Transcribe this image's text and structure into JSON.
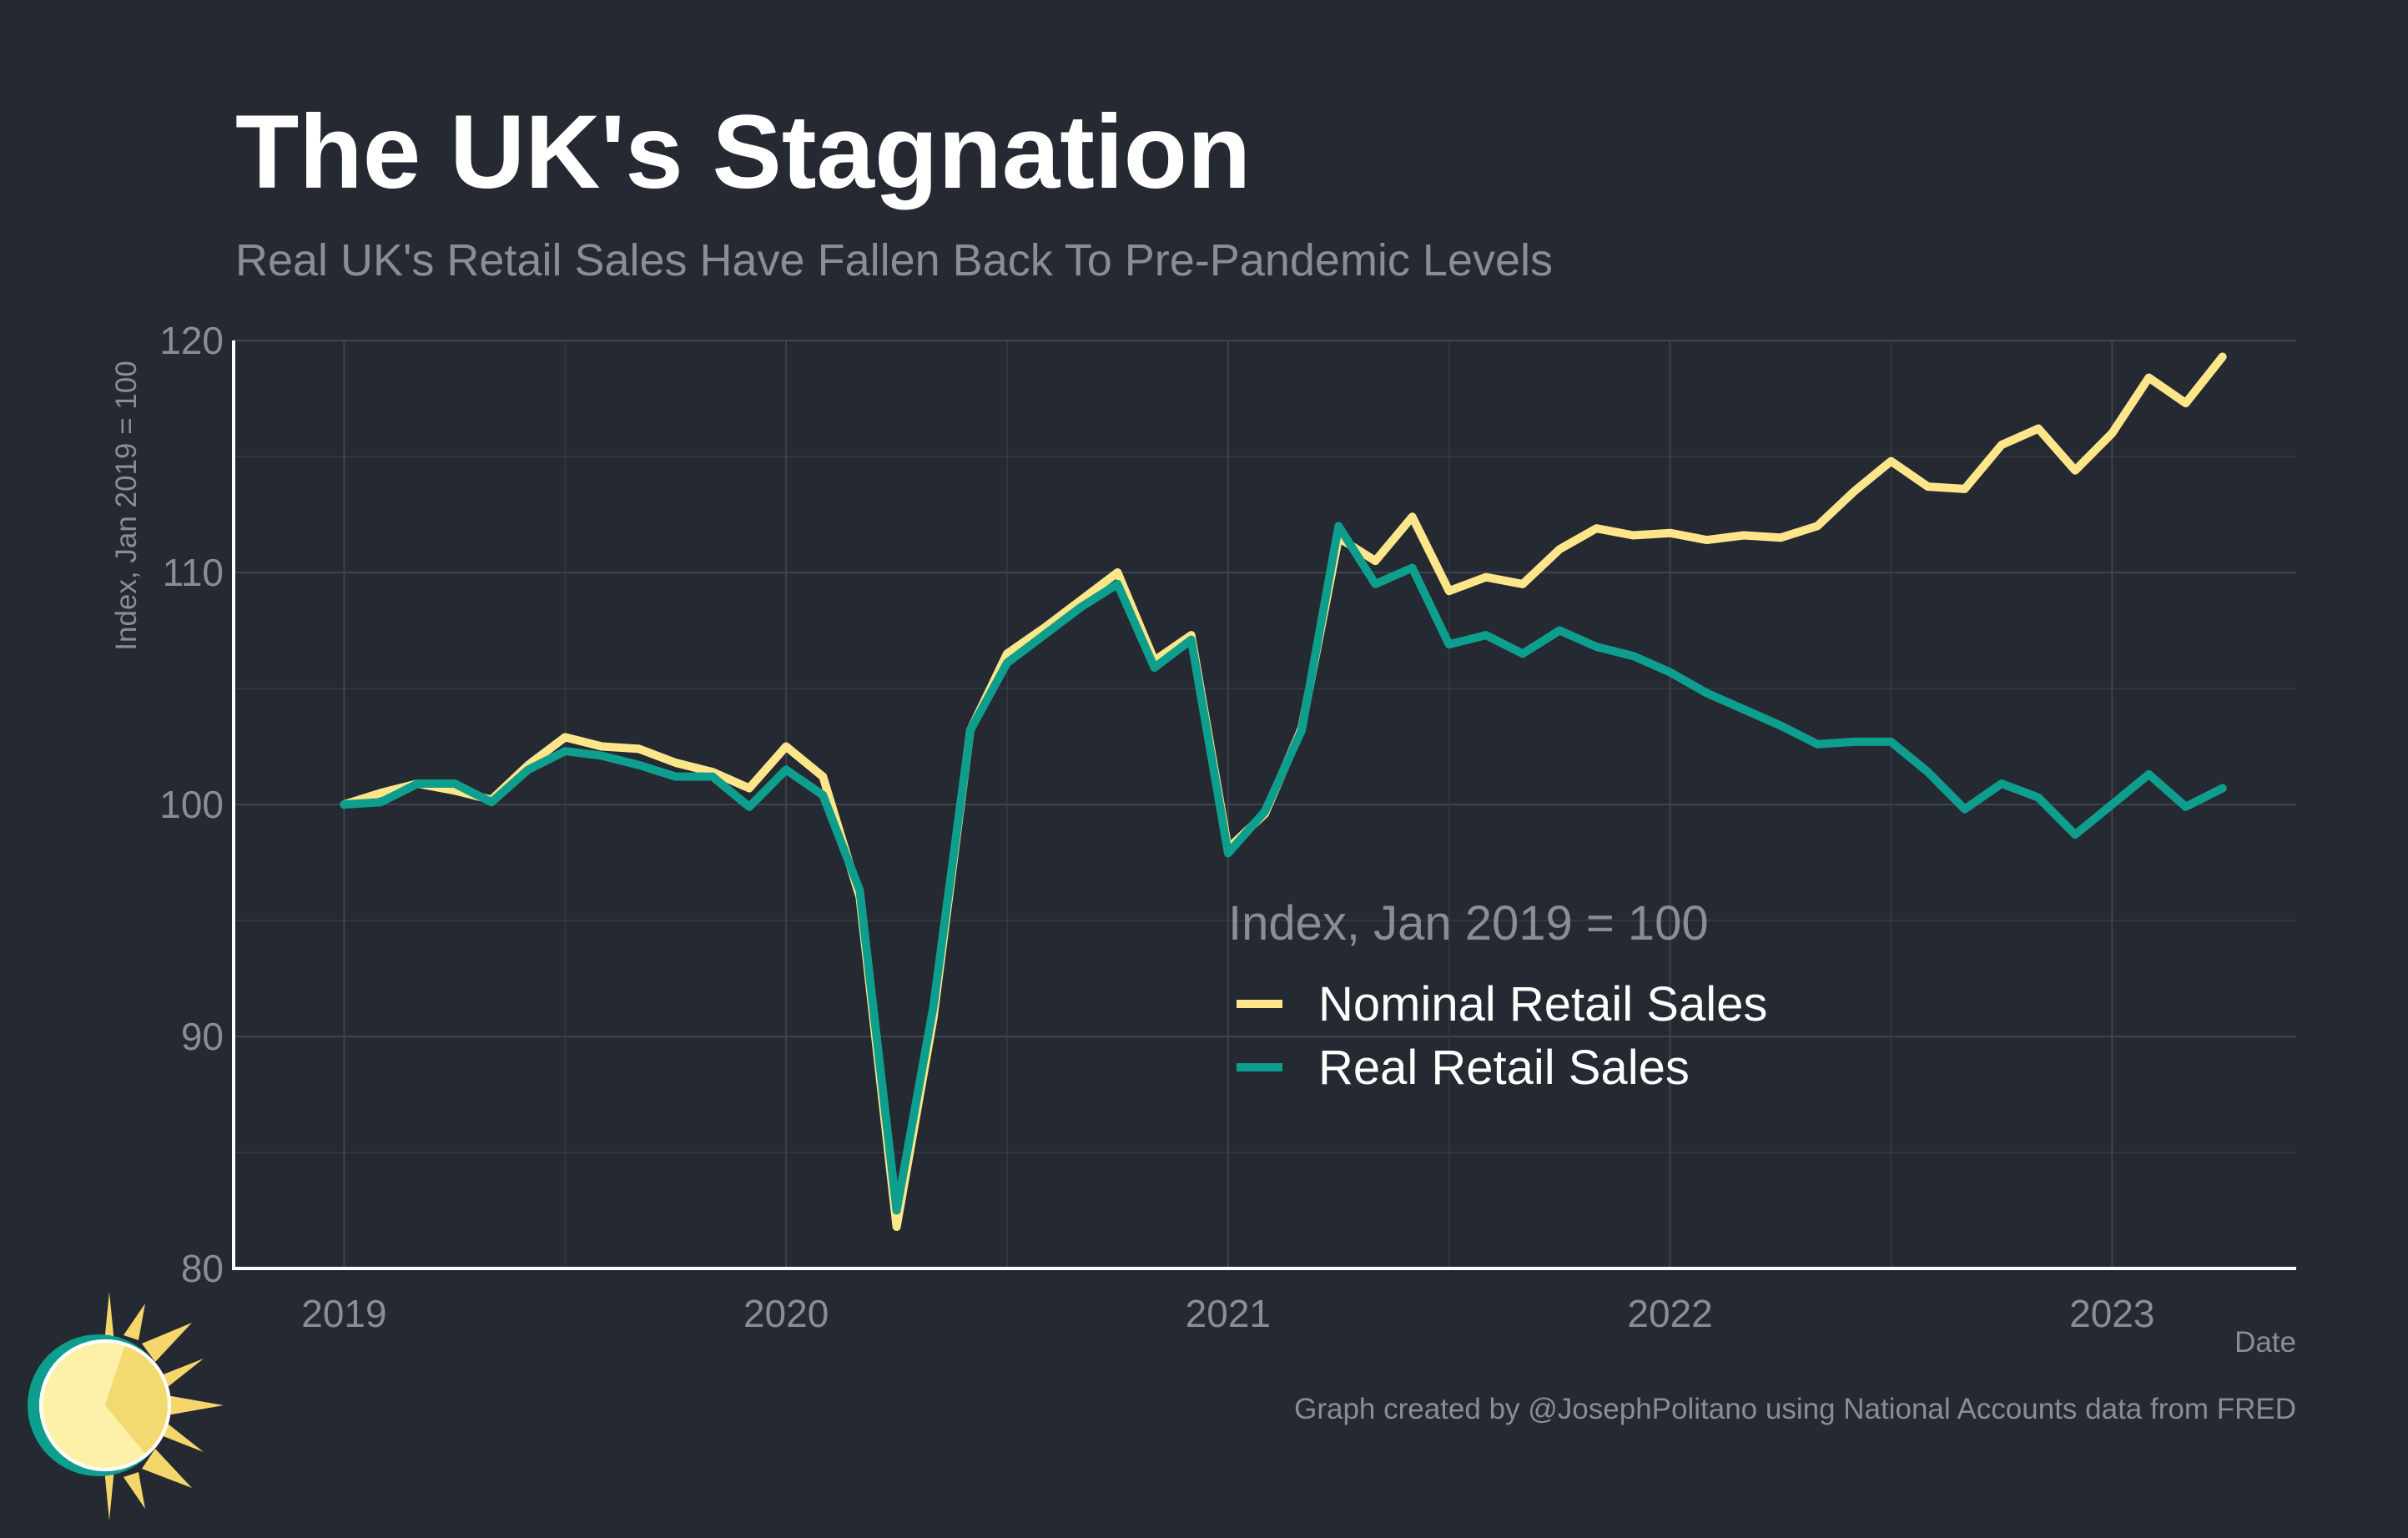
{
  "header": {
    "title": "The UK's Stagnation",
    "subtitle": "Real UK's Retail Sales Have Fallen Back To Pre-Pandemic Levels"
  },
  "caption": "Graph created by @JosephPolitano using National Accounts data from FRED",
  "chart_data": {
    "type": "line",
    "title": "The UK's Stagnation",
    "subtitle": "Real UK's Retail Sales Have Fallen Back To Pre-Pandemic Levels",
    "xlabel": "Date",
    "ylabel": "Index, Jan 2019 = 100",
    "xlim": [
      "2018-10",
      "2023-06"
    ],
    "ylim": [
      80,
      120
    ],
    "x_ticks": [
      "2019",
      "2020",
      "2021",
      "2022",
      "2023"
    ],
    "y_ticks": [
      80,
      90,
      100,
      110,
      120
    ],
    "grid": true,
    "legend": {
      "title": "Index, Jan 2019 = 100",
      "placement": "center-right inside plot",
      "entries": [
        "Nominal Retail Sales",
        "Real Retail Sales"
      ]
    },
    "x": [
      "2019-01",
      "2019-02",
      "2019-03",
      "2019-04",
      "2019-05",
      "2019-06",
      "2019-07",
      "2019-08",
      "2019-09",
      "2019-10",
      "2019-11",
      "2019-12",
      "2020-01",
      "2020-02",
      "2020-03",
      "2020-04",
      "2020-05",
      "2020-06",
      "2020-07",
      "2020-08",
      "2020-09",
      "2020-10",
      "2020-11",
      "2020-12",
      "2021-01",
      "2021-02",
      "2021-03",
      "2021-04",
      "2021-05",
      "2021-06",
      "2021-07",
      "2021-08",
      "2021-09",
      "2021-10",
      "2021-11",
      "2021-12",
      "2022-01",
      "2022-02",
      "2022-03",
      "2022-04",
      "2022-05",
      "2022-06",
      "2022-07",
      "2022-08",
      "2022-09",
      "2022-10",
      "2022-11",
      "2022-12",
      "2023-01",
      "2023-02",
      "2023-03",
      "2023-04"
    ],
    "series": [
      {
        "name": "Nominal Retail Sales",
        "color": "#fde68a",
        "values": [
          100.0,
          100.5,
          100.9,
          100.6,
          100.2,
          101.7,
          102.9,
          102.5,
          102.4,
          101.8,
          101.4,
          100.7,
          102.5,
          101.2,
          96.0,
          81.8,
          90.8,
          103.2,
          106.5,
          107.6,
          108.8,
          110.0,
          106.2,
          107.3,
          98.1,
          99.6,
          103.3,
          111.5,
          110.5,
          112.4,
          109.2,
          109.8,
          109.5,
          111.0,
          111.9,
          111.6,
          111.7,
          111.4,
          111.6,
          111.5,
          112.0,
          113.5,
          114.8,
          113.7,
          113.6,
          115.5,
          116.2,
          114.4,
          116.0,
          118.4,
          117.3,
          119.3
        ]
      },
      {
        "name": "Real Retail Sales",
        "color": "#0d9e8d",
        "values": [
          100.0,
          100.1,
          100.9,
          100.9,
          100.1,
          101.5,
          102.3,
          102.1,
          101.7,
          101.2,
          101.2,
          99.9,
          101.5,
          100.4,
          96.3,
          82.5,
          91.3,
          103.2,
          106.1,
          107.3,
          108.5,
          109.5,
          105.9,
          107.1,
          97.9,
          99.7,
          103.2,
          112.0,
          109.5,
          110.2,
          106.9,
          107.3,
          106.5,
          107.5,
          106.8,
          106.4,
          105.7,
          104.8,
          104.1,
          103.4,
          102.6,
          102.7,
          102.7,
          101.4,
          99.8,
          100.9,
          100.3,
          98.7,
          100.0,
          101.3,
          99.9,
          100.7
        ]
      }
    ]
  }
}
